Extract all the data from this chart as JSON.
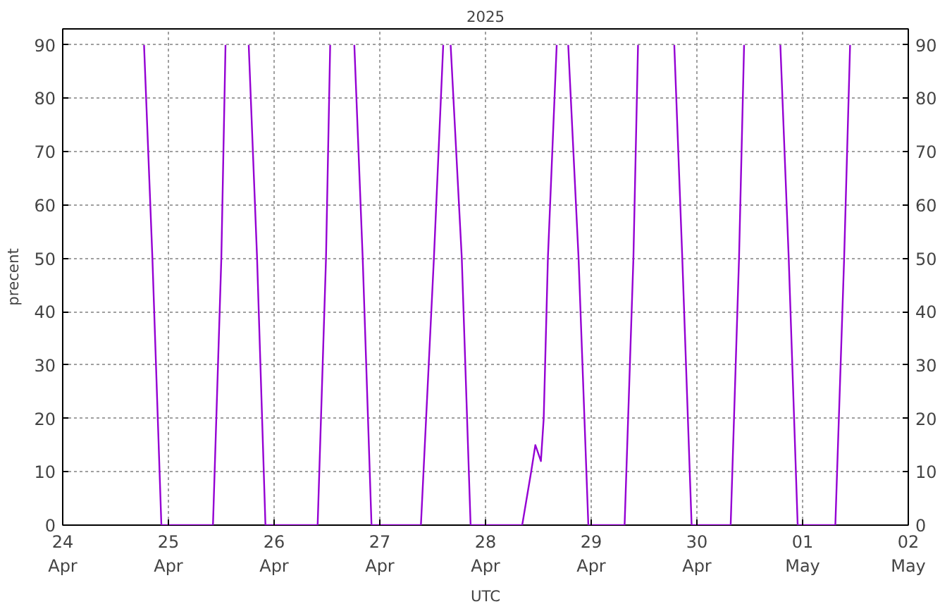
{
  "chart_data": {
    "type": "line",
    "title": "2025",
    "xlabel": "UTC",
    "ylabel": "precent",
    "x": [
      "2025-04-24T18:28",
      "2025-04-24T20:22",
      "2025-04-24T22:24",
      "2025-04-25T10:07",
      "2025-04-25T12:01",
      "2025-04-25T12:58",
      "2025-04-25T15:30",
      "2025-04-25T18:14",
      "2025-04-25T20:08",
      "2025-04-25T22:02",
      "2025-04-26T09:53",
      "2025-04-26T11:47",
      "2025-04-26T12:44",
      "2025-04-26T15:30",
      "2025-04-26T18:13",
      "2025-04-26T20:07",
      "2025-04-26T22:07",
      "2025-04-27T09:20",
      "2025-04-27T12:17",
      "2025-04-27T14:24",
      "2025-04-27T15:15",
      "2025-04-27T16:05",
      "2025-04-27T18:37",
      "2025-04-27T20:37",
      "2025-04-28T08:20",
      "2025-04-28T10:22",
      "2025-04-28T11:19",
      "2025-04-28T12:35",
      "2025-04-28T13:13",
      "2025-04-28T14:10",
      "2025-04-28T16:10",
      "2025-04-28T17:30",
      "2025-04-28T18:47",
      "2025-04-28T21:08",
      "2025-04-28T23:21",
      "2025-04-29T07:35",
      "2025-04-29T09:35",
      "2025-04-29T10:38",
      "2025-04-29T15:00",
      "2025-04-29T18:52",
      "2025-04-29T20:41",
      "2025-04-29T22:48",
      "2025-04-30T07:40",
      "2025-04-30T09:34",
      "2025-04-30T10:43",
      "2025-04-30T15:00",
      "2025-04-30T18:57",
      "2025-04-30T20:51",
      "2025-04-30T22:53",
      "2025-05-01T07:26",
      "2025-05-01T09:26",
      "2025-05-01T10:47"
    ],
    "series": [
      {
        "color": "#9400d3",
        "values": [
          90,
          50,
          0,
          0,
          50,
          90,
          null,
          90,
          50,
          0,
          0,
          50,
          90,
          null,
          90,
          50,
          0,
          0,
          50,
          90,
          null,
          90,
          50,
          0,
          0,
          10,
          15,
          12,
          20,
          50,
          90,
          null,
          90,
          50,
          0,
          0,
          50,
          90,
          null,
          90,
          50,
          0,
          0,
          50,
          90,
          null,
          90,
          50,
          0,
          0,
          50,
          90
        ]
      }
    ],
    "xlim": [
      "2025-04-24",
      "2025-05-02"
    ],
    "xticks": [
      {
        "value": "2025-04-24",
        "label": "24\nApr"
      },
      {
        "value": "2025-04-25",
        "label": "25\nApr"
      },
      {
        "value": "2025-04-26",
        "label": "26\nApr"
      },
      {
        "value": "2025-04-27",
        "label": "27\nApr"
      },
      {
        "value": "2025-04-28",
        "label": "28\nApr"
      },
      {
        "value": "2025-04-29",
        "label": "29\nApr"
      },
      {
        "value": "2025-04-30",
        "label": "30\nApr"
      },
      {
        "value": "2025-05-01",
        "label": "01\nMay"
      },
      {
        "value": "2025-05-02",
        "label": "02\nMay"
      }
    ],
    "ylim": [
      0,
      93
    ],
    "yticks": [
      0,
      10,
      20,
      30,
      40,
      50,
      60,
      70,
      80,
      90
    ],
    "y2lim": [
      0,
      93
    ],
    "y2ticks": [
      0,
      10,
      20,
      30,
      40,
      50,
      60,
      70,
      80,
      90
    ],
    "grid": true,
    "line_style": "solid",
    "marker": "none"
  }
}
